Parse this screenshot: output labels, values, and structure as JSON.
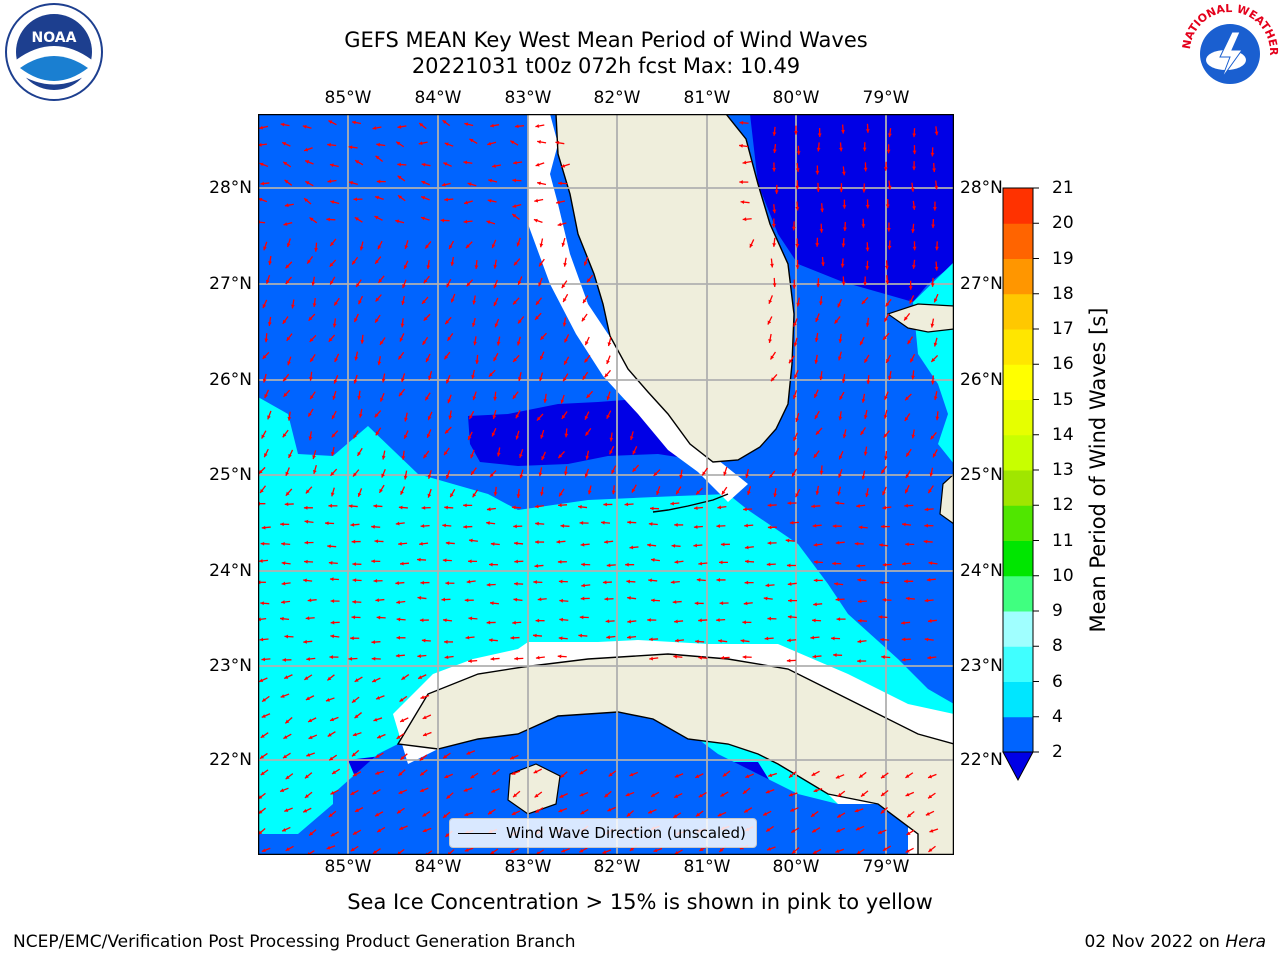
{
  "title": {
    "line1": "GEFS MEAN Key West Mean Period of Wind Waves",
    "line2": "20221031 t00z 072h fcst   Max: 10.49"
  },
  "colors": {
    "ocean_dark": "#0000e6",
    "ocean_blue": "#0064ff",
    "ocean_cyan": "#00ffff",
    "land": "#efeedc",
    "arrow": "#ff0000",
    "grid": "#b0b0b0"
  },
  "map": {
    "lon_labels": [
      "85°W",
      "84°W",
      "83°W",
      "82°W",
      "81°W",
      "80°W",
      "79°W"
    ],
    "lat_labels": [
      "28°N",
      "27°N",
      "26°N",
      "25°N",
      "24°N",
      "23°N",
      "22°N"
    ],
    "legend_label": "Wind Wave Direction (unscaled)"
  },
  "colorbar": {
    "label": "Mean Period of Wind Waves [s]",
    "ticks": [
      "21",
      "20",
      "19",
      "18",
      "17",
      "16",
      "15",
      "14",
      "13",
      "12",
      "11",
      "10",
      "9",
      "8",
      "6",
      "4",
      "2"
    ],
    "levels": [
      2,
      4,
      6,
      8,
      9,
      10,
      11,
      12,
      13,
      14,
      15,
      16,
      17,
      18,
      19,
      20,
      21
    ],
    "colors": [
      "#0064ff",
      "#00e6ff",
      "#40ffff",
      "#a0ffff",
      "#40ff80",
      "#00e600",
      "#50e600",
      "#a0e600",
      "#c8ff00",
      "#e6ff00",
      "#ffff00",
      "#ffe600",
      "#ffc800",
      "#ff9600",
      "#ff6400",
      "#ff3200",
      "#ff0000"
    ],
    "under_color": "#0000e6"
  },
  "notes": {
    "sea_ice": "Sea Ice Concentration > 15% is shown in pink to yellow"
  },
  "footer": {
    "left": "NCEP/EMC/Verification Post Processing Product Generation Branch",
    "date": "02 Nov 2022 on",
    "host": "Hera"
  },
  "logos": {
    "left": "noaa-logo",
    "right": "nws-logo",
    "nws_text": "NATIONAL WEATHER SERVICE"
  }
}
